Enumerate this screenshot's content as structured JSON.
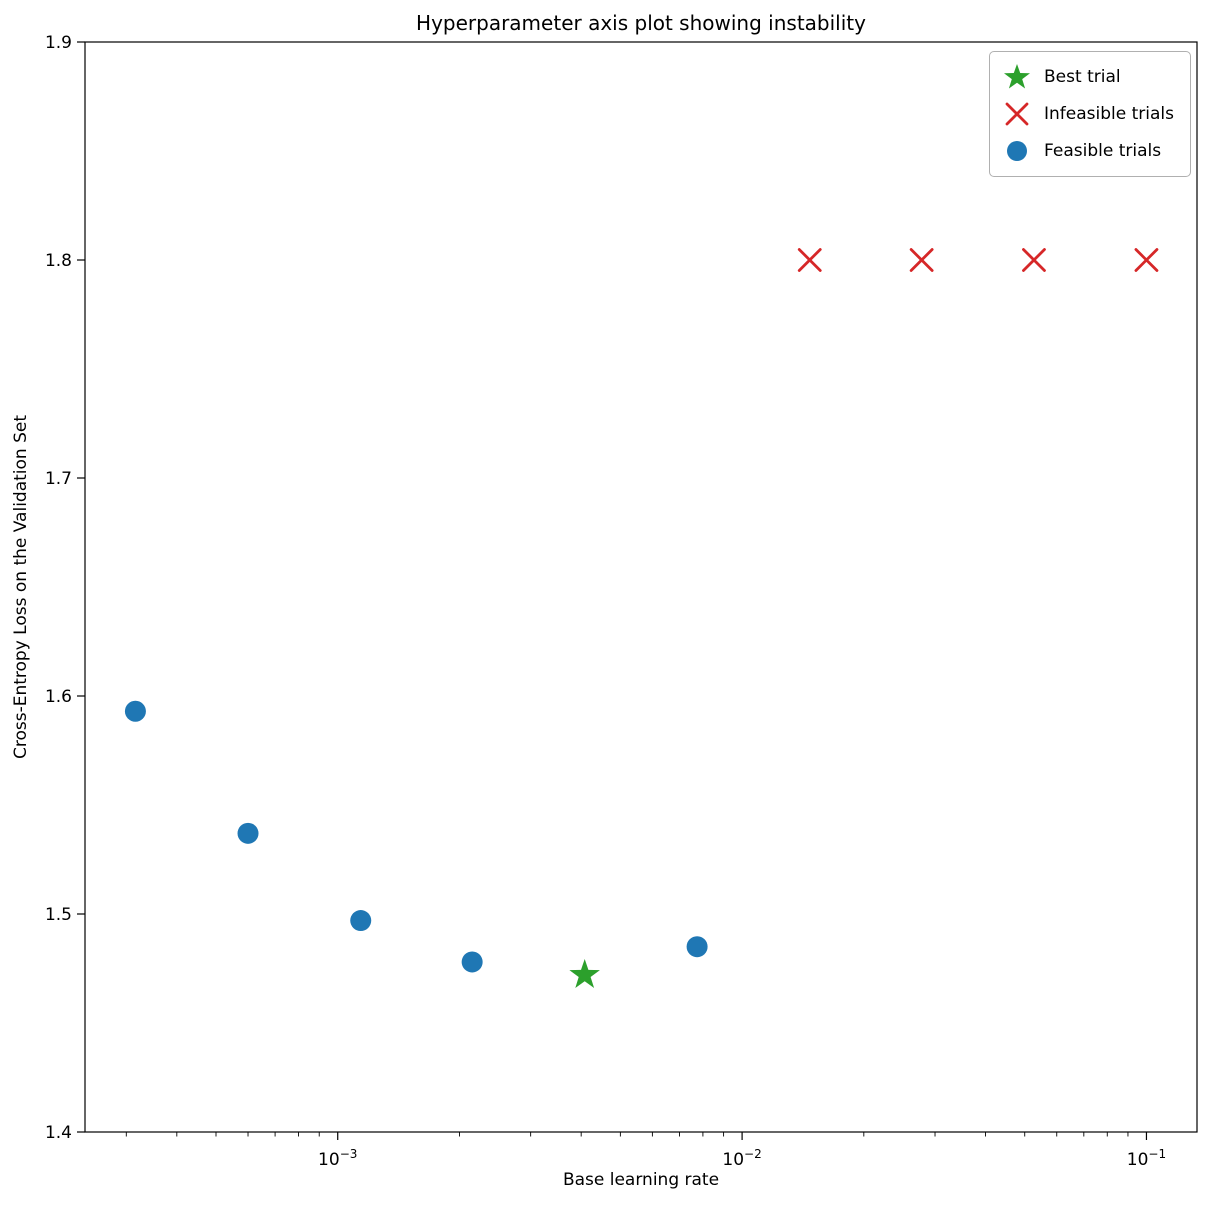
{
  "chart_data": {
    "type": "scatter",
    "title": "Hyperparameter axis plot showing instability",
    "xlabel": "Base learning rate",
    "ylabel": "Cross-Entropy Loss on the Validation Set",
    "x_scale": "log",
    "xlim_log10": [
      -3.625,
      -0.875
    ],
    "ylim": [
      1.4,
      1.9
    ],
    "x_major_tick_exponents": [
      -3,
      -2,
      -1
    ],
    "y_ticks": [
      1.4,
      1.5,
      1.6,
      1.7,
      1.8,
      1.9
    ],
    "grid": false,
    "series": [
      {
        "name": "Feasible trials",
        "marker": "circle",
        "color": "#1f77b4",
        "points": [
          {
            "x": 0.000316,
            "y": 1.593
          },
          {
            "x": 0.0006,
            "y": 1.537
          },
          {
            "x": 0.00114,
            "y": 1.497
          },
          {
            "x": 0.00215,
            "y": 1.478
          },
          {
            "x": 0.00774,
            "y": 1.485
          }
        ]
      },
      {
        "name": "Best trial",
        "marker": "star",
        "color": "#2ca02c",
        "points": [
          {
            "x": 0.00408,
            "y": 1.472
          }
        ]
      },
      {
        "name": "Infeasible trials",
        "marker": "x",
        "color": "#d62728",
        "points": [
          {
            "x": 0.0147,
            "y": 1.8
          },
          {
            "x": 0.0278,
            "y": 1.8
          },
          {
            "x": 0.0527,
            "y": 1.8
          },
          {
            "x": 0.1,
            "y": 1.8
          }
        ]
      }
    ],
    "legend": {
      "position": "upper right",
      "items": [
        {
          "label": "Best trial",
          "marker": "star",
          "color": "#2ca02c"
        },
        {
          "label": "Infeasible trials",
          "marker": "x",
          "color": "#d62728"
        },
        {
          "label": "Feasible trials",
          "marker": "circle",
          "color": "#1f77b4"
        }
      ]
    }
  }
}
